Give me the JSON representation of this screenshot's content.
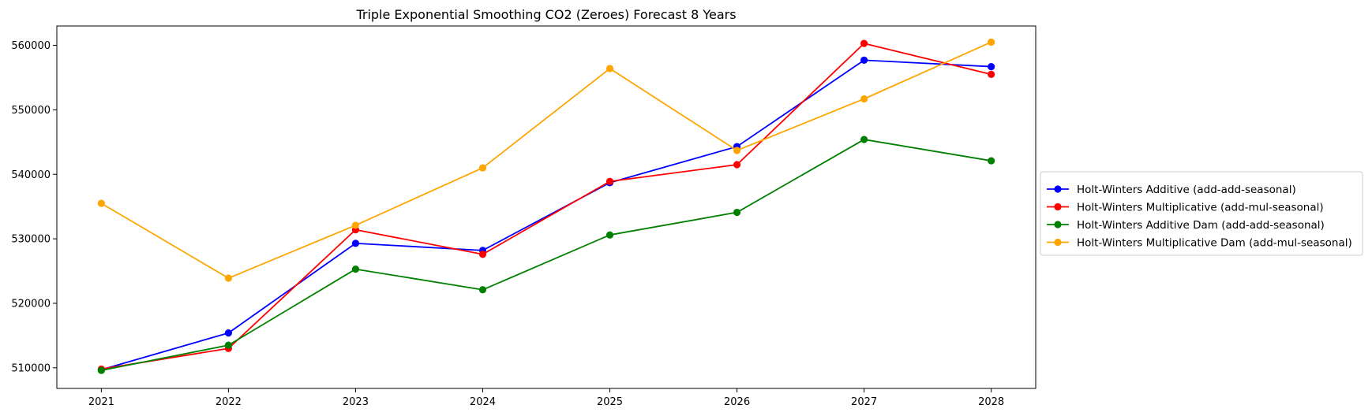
{
  "chart_data": {
    "type": "line",
    "title": "Triple Exponential Smoothing CO2 (Zeroes) Forecast 8 Years",
    "xlabel": "",
    "ylabel": "",
    "x": [
      "2021",
      "2022",
      "2023",
      "2024",
      "2025",
      "2026",
      "2027",
      "2028"
    ],
    "xlim": [
      2020.65,
      2028.35
    ],
    "ylim": [
      506800,
      563000
    ],
    "y_ticks": [
      510000,
      520000,
      530000,
      540000,
      550000,
      560000
    ],
    "y_tick_labels": [
      "510000",
      "520000",
      "530000",
      "540000",
      "550000",
      "560000"
    ],
    "grid": false,
    "legend_position": "center-right outside",
    "series": [
      {
        "name": "Holt-Winters Additive (add-add-seasonal)",
        "color": "#0000ff",
        "marker": "circle",
        "values": [
          509700,
          515400,
          529300,
          528200,
          538700,
          544300,
          557700,
          556700
        ]
      },
      {
        "name": "Holt-Winters Multiplicative (add-mul-seasonal)",
        "color": "#ff0000",
        "marker": "circle",
        "values": [
          509800,
          513000,
          531400,
          527600,
          538900,
          541500,
          560300,
          555500
        ]
      },
      {
        "name": "Holt-Winters Additive Dam (add-add-seasonal)",
        "color": "#008000",
        "marker": "circle",
        "values": [
          509600,
          513500,
          525300,
          522100,
          530600,
          534100,
          545400,
          542100
        ]
      },
      {
        "name": "Holt-Winters Multiplicative Dam (add-mul-seasonal)",
        "color": "#ffa500",
        "marker": "circle",
        "values": [
          535500,
          523900,
          532100,
          541000,
          556400,
          543700,
          551700,
          560500
        ]
      }
    ]
  }
}
